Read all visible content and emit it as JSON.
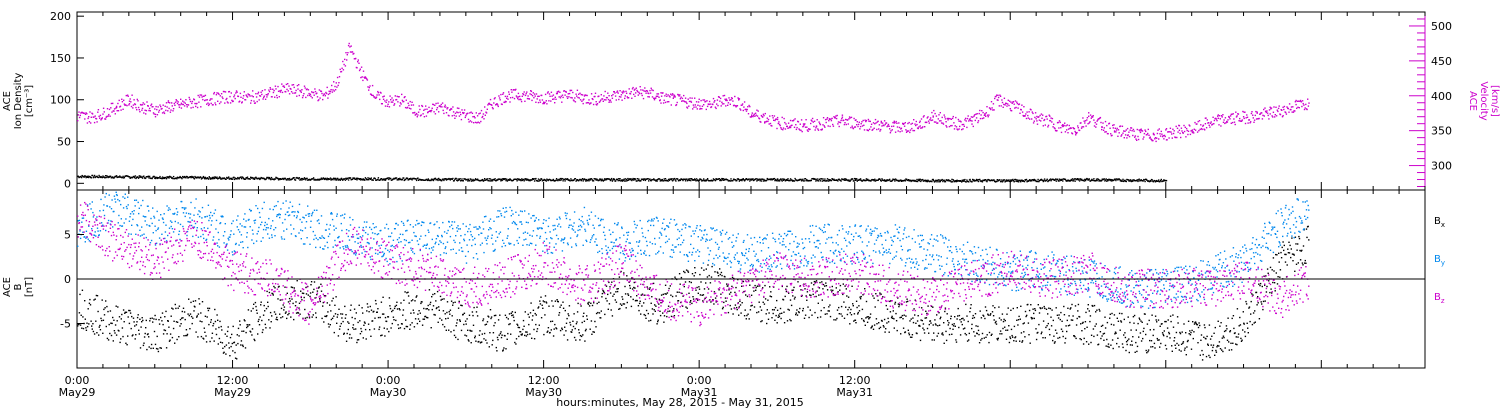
{
  "chart_data": [
    {
      "type": "scatter",
      "panel": "plasma",
      "ylabel_left": [
        "ACE",
        "Ion Density",
        "[cm⁻³]"
      ],
      "ylabel_right": [
        "ACE",
        "Velocity",
        "[km/s]"
      ],
      "left_axis": {
        "ylim": [
          -8,
          205
        ],
        "ticks": [
          0,
          50,
          100,
          150,
          200
        ],
        "tick_labels": [
          "0",
          "50",
          "100",
          "150",
          "200"
        ]
      },
      "right_axis": {
        "ylim": [
          265,
          520
        ],
        "ticks": [
          300,
          350,
          400,
          450,
          500
        ],
        "tick_labels": [
          "300",
          "350",
          "400",
          "450",
          "500"
        ],
        "color": "#cc00cc"
      },
      "series": [
        {
          "color": "#000000",
          "axis": "left",
          "x": [
            0,
            6,
            12,
            18,
            24,
            30,
            36,
            42,
            48,
            54,
            60,
            66,
            72,
            78,
            84
          ],
          "y": [
            9,
            8,
            7,
            6,
            6,
            5,
            5,
            5,
            5,
            5,
            5,
            4,
            4,
            5,
            4
          ]
        },
        {
          "color": "#cc00cc",
          "axis": "right",
          "x": [
            0,
            1,
            2,
            3,
            4,
            5,
            6,
            7,
            8,
            9,
            10,
            11,
            12,
            13,
            14,
            15,
            16,
            17,
            18,
            19,
            20,
            21,
            22,
            23,
            24,
            25,
            26,
            27,
            28,
            29,
            30,
            31,
            32,
            33,
            34,
            35,
            36,
            37,
            38,
            39,
            40,
            41,
            42,
            43,
            44,
            45,
            46,
            47,
            48,
            49,
            50,
            51,
            52,
            53,
            54,
            55,
            56,
            57,
            58,
            59,
            60,
            61,
            62,
            63,
            64,
            65,
            66,
            67,
            68,
            69,
            70,
            71,
            72,
            73,
            74,
            75,
            76,
            77,
            78,
            79,
            80,
            81,
            82,
            83,
            84,
            85,
            86,
            87,
            88,
            89,
            90,
            91,
            92,
            93,
            94,
            95
          ],
          "y": [
            372,
            370,
            375,
            385,
            395,
            385,
            380,
            385,
            388,
            392,
            395,
            398,
            400,
            398,
            400,
            405,
            410,
            408,
            405,
            400,
            418,
            470,
            430,
            400,
            392,
            395,
            380,
            378,
            385,
            378,
            372,
            368,
            390,
            400,
            402,
            400,
            398,
            400,
            402,
            398,
            396,
            400,
            402,
            406,
            405,
            398,
            395,
            392,
            390,
            388,
            395,
            392,
            375,
            370,
            362,
            360,
            358,
            360,
            362,
            365,
            362,
            360,
            358,
            356,
            356,
            360,
            372,
            365,
            360,
            365,
            375,
            395,
            388,
            378,
            368,
            364,
            355,
            352,
            370,
            360,
            350,
            348,
            345,
            344,
            346,
            350,
            352,
            360,
            365,
            368,
            370,
            372,
            376,
            380,
            386,
            390
          ]
        }
      ]
    },
    {
      "type": "scatter",
      "panel": "magnetic_field",
      "ylabel_left": [
        "ACE",
        "B",
        "[nT]"
      ],
      "left_axis": {
        "ylim": [
          -10,
          10
        ],
        "ticks": [
          -5,
          0,
          5
        ],
        "tick_labels": [
          "-5",
          "0",
          "5"
        ]
      },
      "zero_line": true,
      "legend": [
        {
          "label": "B",
          "sub": "x",
          "color": "#000000"
        },
        {
          "label": "B",
          "sub": "y",
          "color": "#0088ee"
        },
        {
          "label": "B",
          "sub": "z",
          "color": "#cc00cc"
        }
      ],
      "series": [
        {
          "color": "#000000",
          "x": [
            0,
            3,
            6,
            9,
            12,
            15,
            18,
            21,
            24,
            27,
            30,
            33,
            36,
            39,
            42,
            45,
            48,
            51,
            54,
            57,
            60,
            63,
            66,
            69,
            72,
            75,
            78,
            81,
            84,
            87,
            90,
            93,
            95
          ],
          "y": [
            -3,
            -5,
            -6,
            -4,
            -7,
            -3,
            -2,
            -5,
            -4,
            -3,
            -5,
            -6,
            -4,
            -5,
            -1,
            -3,
            0,
            -2,
            -3,
            -2,
            -3,
            -4,
            -5,
            -5,
            -5,
            -5,
            -5,
            -6,
            -6,
            -7,
            -5,
            2,
            4
          ]
        },
        {
          "color": "#0088ee",
          "x": [
            0,
            3,
            6,
            9,
            12,
            15,
            18,
            21,
            24,
            27,
            30,
            33,
            36,
            39,
            42,
            45,
            48,
            51,
            54,
            57,
            60,
            63,
            66,
            69,
            72,
            75,
            78,
            81,
            84,
            87,
            90,
            93,
            95
          ],
          "y": [
            6,
            8,
            6,
            7,
            5,
            7,
            6,
            5,
            4,
            5,
            4,
            6,
            5,
            6,
            4,
            5,
            4,
            3,
            3,
            4,
            4,
            4,
            3,
            2,
            1,
            1,
            0,
            -1,
            -1,
            0,
            2,
            6,
            8
          ]
        },
        {
          "color": "#cc00cc",
          "x": [
            0,
            3,
            6,
            9,
            12,
            15,
            18,
            21,
            24,
            27,
            30,
            33,
            36,
            39,
            42,
            45,
            48,
            51,
            54,
            57,
            60,
            63,
            66,
            69,
            72,
            75,
            78,
            81,
            84,
            87,
            90,
            93,
            95
          ],
          "y": [
            7,
            4,
            2,
            5,
            1,
            0,
            -3,
            4,
            2,
            1,
            -1,
            0,
            2,
            -1,
            2,
            -2,
            -3,
            -1,
            1,
            0,
            1,
            -1,
            -2,
            0,
            1,
            0,
            1,
            -1,
            -1,
            -1,
            0,
            -2,
            0
          ]
        }
      ]
    }
  ],
  "x_axis": {
    "range_hours": [
      0,
      104
    ],
    "ticks": [
      {
        "h": 0,
        "time": "0:00",
        "date": "May29"
      },
      {
        "h": 12,
        "time": "12:00",
        "date": "May29"
      },
      {
        "h": 24,
        "time": "0:00",
        "date": "May30"
      },
      {
        "h": 36,
        "time": "12:00",
        "date": "May30"
      },
      {
        "h": 48,
        "time": "0:00",
        "date": "May31"
      },
      {
        "h": 60,
        "time": "12:00",
        "date": "May31"
      }
    ],
    "title": "hours:minutes, May 28, 2015 - May 31, 2015"
  }
}
